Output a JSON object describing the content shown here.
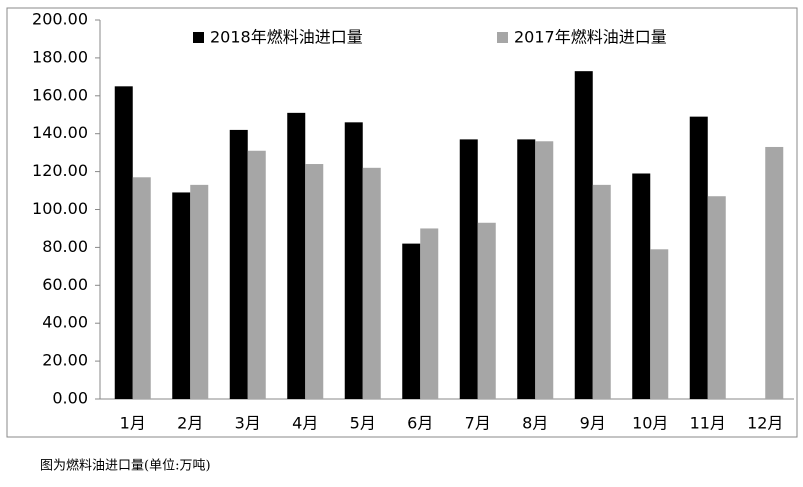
{
  "chart_data": {
    "type": "bar",
    "caption": "图为燃料油进口量(单位:万吨)",
    "categories": [
      "1月",
      "2月",
      "3月",
      "4月",
      "5月",
      "6月",
      "7月",
      "8月",
      "9月",
      "10月",
      "11月",
      "12月"
    ],
    "series": [
      {
        "name": "2018年燃料油进口量",
        "color": "#000000",
        "values": [
          165,
          109,
          142,
          151,
          146,
          82,
          137,
          137,
          173,
          119,
          149,
          null
        ]
      },
      {
        "name": "2017年燃料油进口量",
        "color": "#a6a6a6",
        "values": [
          117,
          113,
          131,
          124,
          122,
          90,
          93,
          136,
          113,
          79,
          107,
          133
        ]
      }
    ],
    "ylim": [
      0,
      200
    ],
    "yticks": [
      {
        "value": 0,
        "label": "0.00"
      },
      {
        "value": 20,
        "label": "20.00"
      },
      {
        "value": 40,
        "label": "40.00"
      },
      {
        "value": 60,
        "label": "60.00"
      },
      {
        "value": 80,
        "label": "80.00"
      },
      {
        "value": 100,
        "label": "100.00"
      },
      {
        "value": 120,
        "label": "120.00"
      },
      {
        "value": 140,
        "label": "140.00"
      },
      {
        "value": 160,
        "label": "160.00"
      },
      {
        "value": 180,
        "label": "180.00"
      },
      {
        "value": 200,
        "label": "200.00"
      }
    ],
    "grid": false,
    "legend": "top"
  }
}
